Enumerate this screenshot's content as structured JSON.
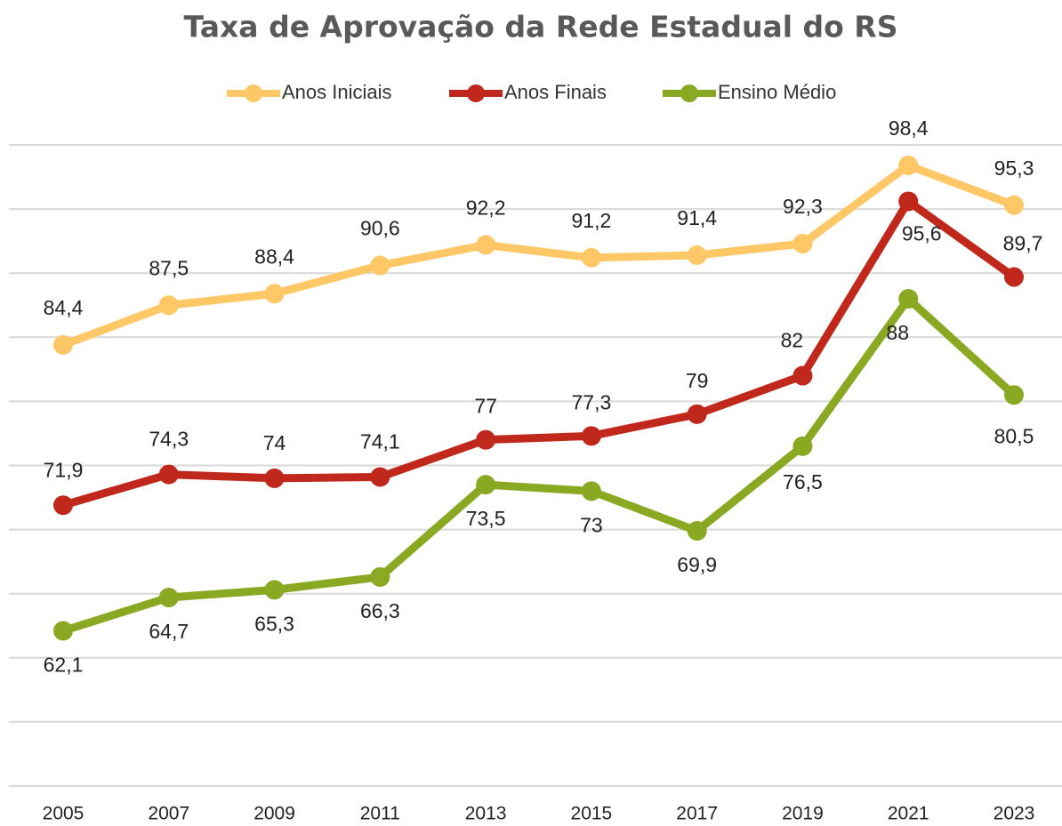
{
  "chart_data": {
    "type": "line",
    "title": "Taxa de Aprovação da Rede Estadual do RS",
    "categories": [
      "2005",
      "2007",
      "2009",
      "2011",
      "2013",
      "2015",
      "2017",
      "2019",
      "2021",
      "2023"
    ],
    "ylim": [
      50,
      100
    ],
    "yticks": [
      50,
      55,
      60,
      65,
      70,
      75,
      80,
      85,
      90,
      95,
      100
    ],
    "grid": true,
    "series": [
      {
        "name": "Anos Iniciais",
        "color": "#FFC766",
        "values": [
          84.4,
          87.5,
          88.4,
          90.6,
          92.2,
          91.2,
          91.4,
          92.3,
          98.4,
          95.3
        ],
        "value_labels": [
          "84,4",
          "87,5",
          "88,4",
          "90,6",
          "92,2",
          "91,2",
          "91,4",
          "92,3",
          "98,4",
          "95,3"
        ]
      },
      {
        "name": "Anos Finais",
        "color": "#C0281B",
        "values": [
          71.9,
          74.3,
          74,
          74.1,
          77,
          77.3,
          79,
          82,
          95.6,
          89.7
        ],
        "value_labels": [
          "71,9",
          "74,3",
          "74",
          "74,1",
          "77",
          "77,3",
          "79",
          "82",
          "95,6",
          "89,7"
        ]
      },
      {
        "name": "Ensino Médio",
        "color": "#8AA822",
        "values": [
          62.1,
          64.7,
          65.3,
          66.3,
          73.5,
          73,
          69.9,
          76.5,
          88,
          80.5
        ],
        "value_labels": [
          "62,1",
          "64,7",
          "65,3",
          "66,3",
          "73,5",
          "73",
          "69,9",
          "76,5",
          "88",
          "80,5"
        ]
      }
    ]
  }
}
